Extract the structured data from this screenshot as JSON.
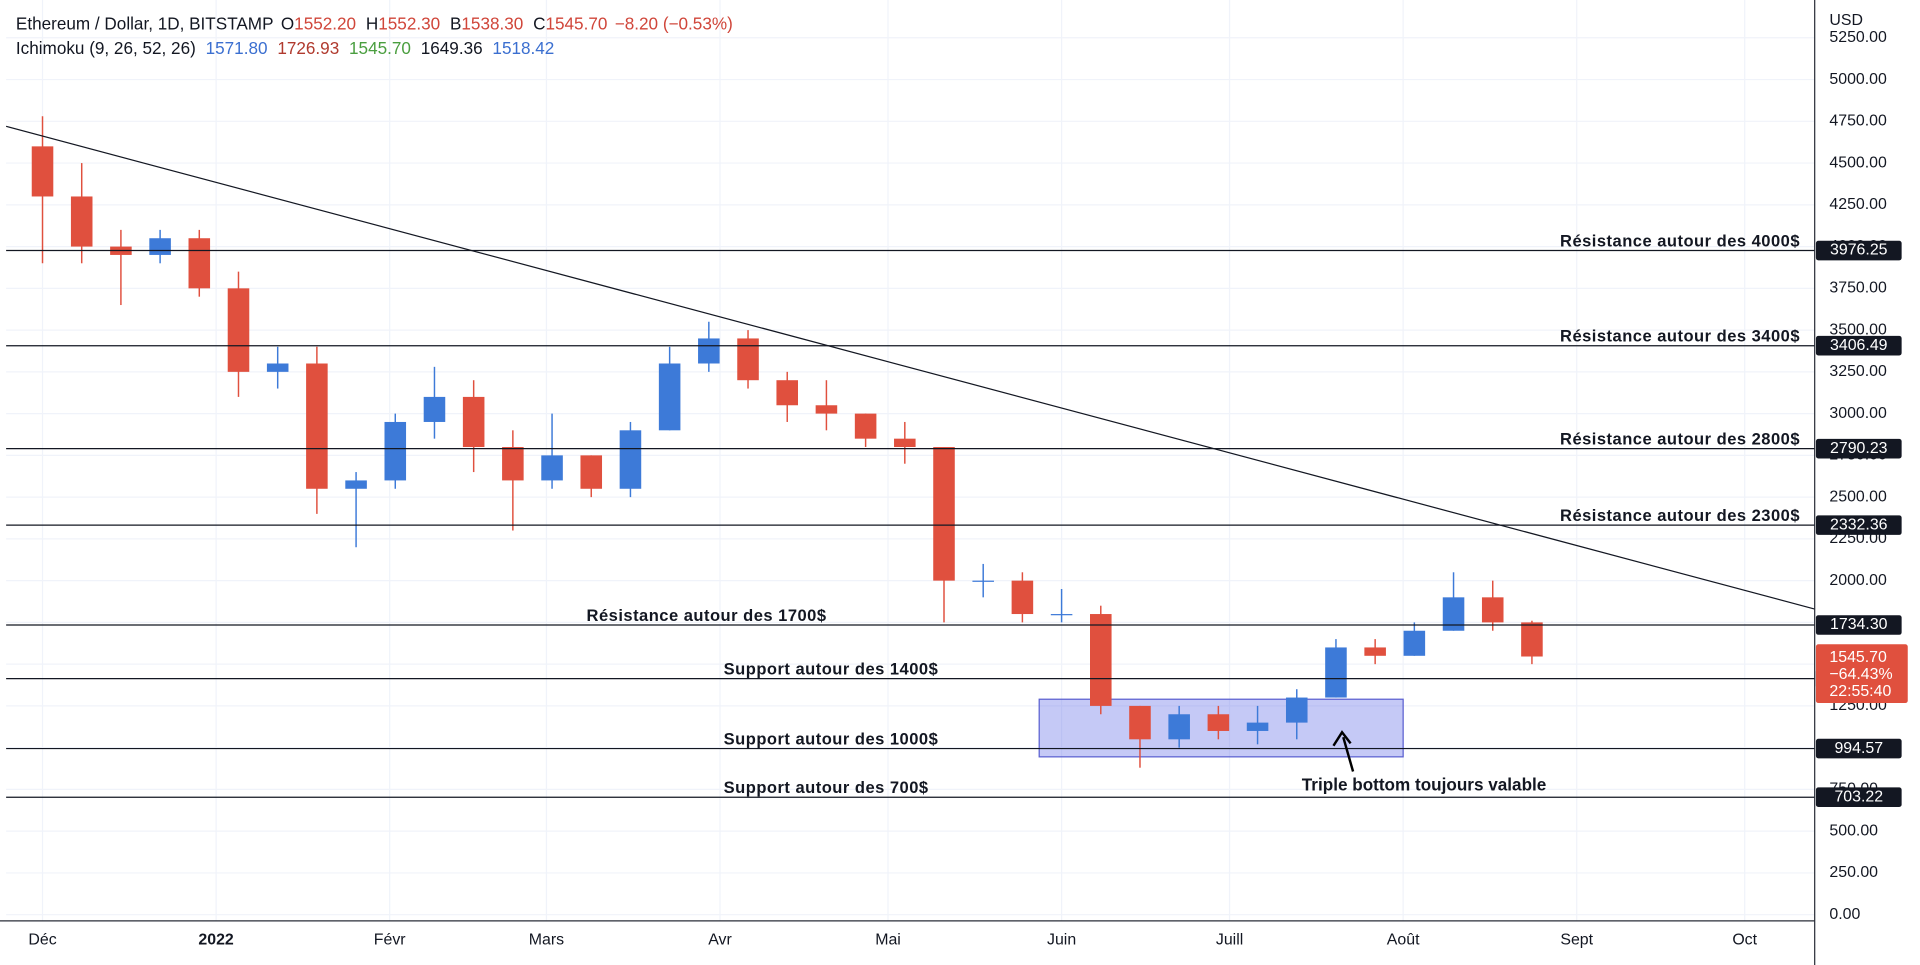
{
  "header": {
    "symbol": "Ethereum / Dollar, 1D, BITSTAMP",
    "ohlc": [
      {
        "key": "O",
        "value": "1552.20"
      },
      {
        "key": "H",
        "value": "1552.30"
      },
      {
        "key": "B",
        "value": "1538.30"
      },
      {
        "key": "C",
        "value": "1545.70"
      }
    ],
    "change": "−8.20 (−0.53%)",
    "indicator": "Ichimoku (9, 26, 52, 26)",
    "indicator_values": [
      {
        "value": "1571.80",
        "color": "#3b6fd0"
      },
      {
        "value": "1726.93",
        "color": "#b03a2e"
      },
      {
        "value": "1545.70",
        "color": "#4a9e3f"
      },
      {
        "value": "1649.36",
        "color": "#131722"
      },
      {
        "value": "1518.42",
        "color": "#3b6fd0"
      }
    ]
  },
  "chart_data": {
    "type": "candlestick",
    "currency": "USD",
    "xlim": [
      -6.5,
      316.5
    ],
    "xticks": [
      {
        "value": 0,
        "label": "Déc"
      },
      {
        "value": 31,
        "label": "2022"
      },
      {
        "value": 62,
        "label": "Févr"
      },
      {
        "value": 90,
        "label": "Mars"
      },
      {
        "value": 121,
        "label": "Avr"
      },
      {
        "value": 151,
        "label": "Mai"
      },
      {
        "value": 182,
        "label": "Juin"
      },
      {
        "value": 212,
        "label": "Juill"
      },
      {
        "value": 243,
        "label": "Août"
      },
      {
        "value": 274,
        "label": "Sept"
      },
      {
        "value": 304,
        "label": "Oct"
      }
    ],
    "ylim": [
      -37,
      5476
    ],
    "yticks": [
      {
        "value": 0,
        "label": "0.00"
      },
      {
        "value": 250,
        "label": "250.00"
      },
      {
        "value": 500,
        "label": "500.00"
      },
      {
        "value": 750,
        "label": "750.00"
      },
      {
        "value": 1000,
        "label": "1000.00"
      },
      {
        "value": 1250,
        "label": "1250.00"
      },
      {
        "value": 1500,
        "label": "1500.00"
      },
      {
        "value": 1750,
        "label": "1750.00"
      },
      {
        "value": 2000,
        "label": "2000.00"
      },
      {
        "value": 2250,
        "label": "2250.00"
      },
      {
        "value": 2500,
        "label": "2500.00"
      },
      {
        "value": 2750,
        "label": "2750.00"
      },
      {
        "value": 3000,
        "label": "3000.00"
      },
      {
        "value": 3250,
        "label": "3250.00"
      },
      {
        "value": 3500,
        "label": "3500.00"
      },
      {
        "value": 3750,
        "label": "3750.00"
      },
      {
        "value": 4000,
        "label": "4000.00"
      },
      {
        "value": 4250,
        "label": "4250.00"
      },
      {
        "value": 4500,
        "label": "4500.00"
      },
      {
        "value": 4750,
        "label": "4750.00"
      },
      {
        "value": 5000,
        "label": "5000.00"
      },
      {
        "value": 5250,
        "label": "5250.00"
      }
    ],
    "up_color": "#3d7ad8",
    "down_color": "#e0503e",
    "candles": {
      "x": [
        0,
        7,
        14,
        21,
        28,
        35,
        42,
        49,
        56,
        63,
        70,
        77,
        84,
        91,
        98,
        105,
        112,
        119,
        126,
        133,
        140,
        147,
        154,
        161,
        168,
        175,
        182,
        189,
        196,
        203,
        210,
        217,
        224,
        231,
        238,
        245,
        252,
        259,
        266
      ],
      "open": [
        4600,
        4300,
        4000,
        3950,
        4050,
        3750,
        3250,
        3300,
        2550,
        2600,
        2950,
        3100,
        2800,
        2600,
        2750,
        2550,
        2900,
        3300,
        3450,
        3200,
        3050,
        3000,
        2850,
        2800,
        2000,
        2000,
        1800,
        1800,
        1250,
        1050,
        1200,
        1100,
        1150,
        1300,
        1600,
        1550,
        1700,
        1900,
        1750
      ],
      "high": [
        4780,
        4500,
        4100,
        4100,
        4100,
        3850,
        3400,
        3400,
        2650,
        3000,
        3280,
        3200,
        2900,
        3000,
        2750,
        2950,
        3400,
        3550,
        3500,
        3250,
        3200,
        3000,
        2950,
        2800,
        2100,
        2050,
        1950,
        1850,
        1250,
        1250,
        1250,
        1250,
        1350,
        1650,
        1650,
        1750,
        2050,
        2000,
        1760
      ],
      "low": [
        3900,
        3900,
        3650,
        3900,
        3700,
        3100,
        3150,
        2400,
        2200,
        2550,
        2850,
        2650,
        2300,
        2550,
        2500,
        2500,
        2900,
        3250,
        3150,
        2950,
        2900,
        2800,
        2700,
        1750,
        1900,
        1750,
        1750,
        1200,
        880,
        1000,
        1050,
        1020,
        1050,
        1300,
        1500,
        1550,
        1700,
        1700,
        1500
      ],
      "close": [
        4300,
        4000,
        3950,
        4050,
        3750,
        3250,
        3300,
        2550,
        2600,
        2950,
        3100,
        2800,
        2600,
        2750,
        2550,
        2900,
        3300,
        3450,
        3200,
        3050,
        3000,
        2850,
        2800,
        2000,
        2000,
        1800,
        1800,
        1250,
        1050,
        1200,
        1100,
        1150,
        1300,
        1600,
        1550,
        1700,
        1900,
        1750,
        1545.7
      ]
    },
    "trendline": {
      "x": [
        -6.5,
        316.5
      ],
      "values": [
        4720,
        1830
      ]
    },
    "levels": [
      {
        "price": 3976.25,
        "text": "Résistance autour des 4000$"
      },
      {
        "price": 3406.49,
        "text": "Résistance autour des 3400$"
      },
      {
        "price": 2790.23,
        "text": "Résistance autour des 2800$"
      },
      {
        "price": 2332.36,
        "text": "Résistance autour des 2300$"
      },
      {
        "price": {
          "value": 1734.3,
          "label": "1734.30"
        },
        "text": "Résistance autour des 1700$"
      },
      {
        "price": 1413.07,
        "text": "Support autour des 1400$"
      },
      {
        "price": 994.57,
        "text": "Support autour des 1000$"
      },
      {
        "price": 703.22,
        "text": "Support autour des 700$"
      }
    ],
    "box": {
      "x": [
        178,
        243
      ],
      "y": [
        945,
        1290
      ],
      "annotation": "Triple bottom toujours valable"
    },
    "last": {
      "price": {
        "value": 1545.7,
        "label": "1545.70"
      },
      "change": "−64.43%",
      "countdown": "22:55:40"
    }
  }
}
